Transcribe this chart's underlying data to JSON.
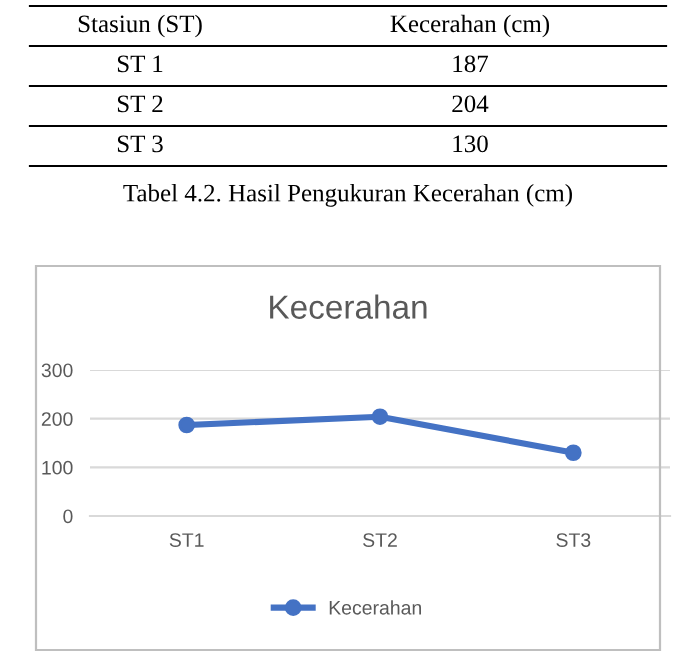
{
  "chart_data": {
    "type": "line",
    "title": "Kecerahan",
    "categories": [
      "ST1",
      "ST2",
      "ST3"
    ],
    "series": [
      {
        "name": "Kecerahan",
        "color": "#4472c4",
        "values": [
          187,
          204,
          130
        ]
      }
    ],
    "ylim": [
      0,
      300
    ],
    "yticks": [
      0,
      100,
      200,
      300
    ],
    "grid": "y",
    "legend": "bottom",
    "marker": "circle",
    "line_style": "solid",
    "annotations": [
      "Stasiun (ST)",
      "Kecerahan (cm)",
      "ST 1",
      "187",
      "ST 2",
      "204",
      "ST 3",
      "130",
      "Tabel 4.2. Hasil Pengukuran Kecerahan (cm)"
    ]
  }
}
